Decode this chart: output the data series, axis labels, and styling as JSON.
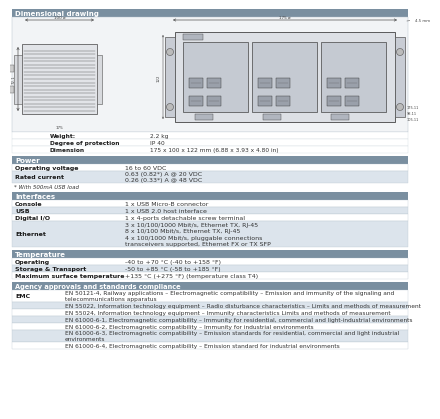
{
  "bg_color": "#ffffff",
  "header_color": "#7a8fa0",
  "header_text_color": "#ffffff",
  "row_alt_color": "#dce4ec",
  "row_white_color": "#ffffff",
  "border_color": "#b0bec8",
  "text_color": "#333333",
  "label_color": "#1a1a1a",
  "sections_power": [
    [
      "Operating voltage",
      "16 to 60 VDC"
    ],
    [
      "Rated current",
      "0.63 (0.82*) A @ 20 VDC\n0.26 (0.33*) A @ 48 VDC"
    ]
  ],
  "footnote_power": "* With 500mA USB load",
  "sections_iface": [
    [
      "Console",
      "1 x USB Micro-B connector"
    ],
    [
      "USB",
      "1 x USB 2.0 host interface"
    ],
    [
      "Digital I/O",
      "1 x 4-ports detachable screw terminal"
    ],
    [
      "Ethernet",
      "3 x 10/100/1000 Mbit/s, Ethernet TX, RJ-45\n8 x 10/100 Mbit/s, Ethernet TX, RJ-45\n4 x 100/1000 Mbit/s, pluggable connections\ntransceivers supported, Ethernet FX or TX SFP"
    ]
  ],
  "sections_temp": [
    [
      "Operating",
      "-40 to +70 °C (-40 to +158 °F)"
    ],
    [
      "Storage & Transport",
      "-50 to +85 °C (-58 to +185 °F)"
    ],
    [
      "Maximum surface temperature",
      "+135 °C (+275 °F) (temperature class T4)"
    ]
  ],
  "sections_agency": [
    [
      "EMC",
      "EN 50121-4, Railway applications – Electromagnetic compatibility – Emission and immunity of the signaling and\ntelecommunications apparatus"
    ],
    [
      "",
      "EN 55022, Information technology equipment – Radio disturbance characteristics – Limits and methods of measurement"
    ],
    [
      "",
      "EN 55024, Information technology equipment – Immunity characteristics Limits and methods of measurement"
    ],
    [
      "",
      "EN 61000-6-1, Electromagnetic compatibility – Immunity for residential, commercial and light-industrial environments"
    ],
    [
      "",
      "EN 61000-6-2, Electromagnetic compatibility – Immunity for industrial environments"
    ],
    [
      "",
      "EN 61000-6-3, Electromagnetic compatibility – Emission standards for residential, commercial and light industrial\nenvironments"
    ],
    [
      "",
      "EN 61000-6-4, Electromagnetic compatibility – Emission standard for industrial environments"
    ]
  ],
  "drawing_specs": [
    [
      "Weight:",
      "2.2 kg"
    ],
    [
      "Degree of protection",
      "IP 40"
    ],
    [
      "Dimension",
      "175 x 100 x 122 mm (6.88 x 3.93 x 4.80 in)"
    ]
  ]
}
